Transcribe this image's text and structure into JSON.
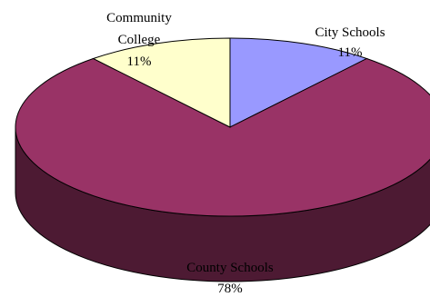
{
  "chart_data": {
    "type": "pie",
    "style": "3d-pie",
    "slices": [
      {
        "label": "City Schools",
        "percent_label": "11%",
        "value": 11,
        "color": "#9999ff"
      },
      {
        "label": "County Schools",
        "percent_label": "78%",
        "value": 78,
        "color": "#993366",
        "side_color": "#4d1a33"
      },
      {
        "label_lines": [
          "Community",
          "College"
        ],
        "percent_label": "11%",
        "value": 11,
        "color": "#ffffcc"
      }
    ],
    "legend": "none"
  }
}
